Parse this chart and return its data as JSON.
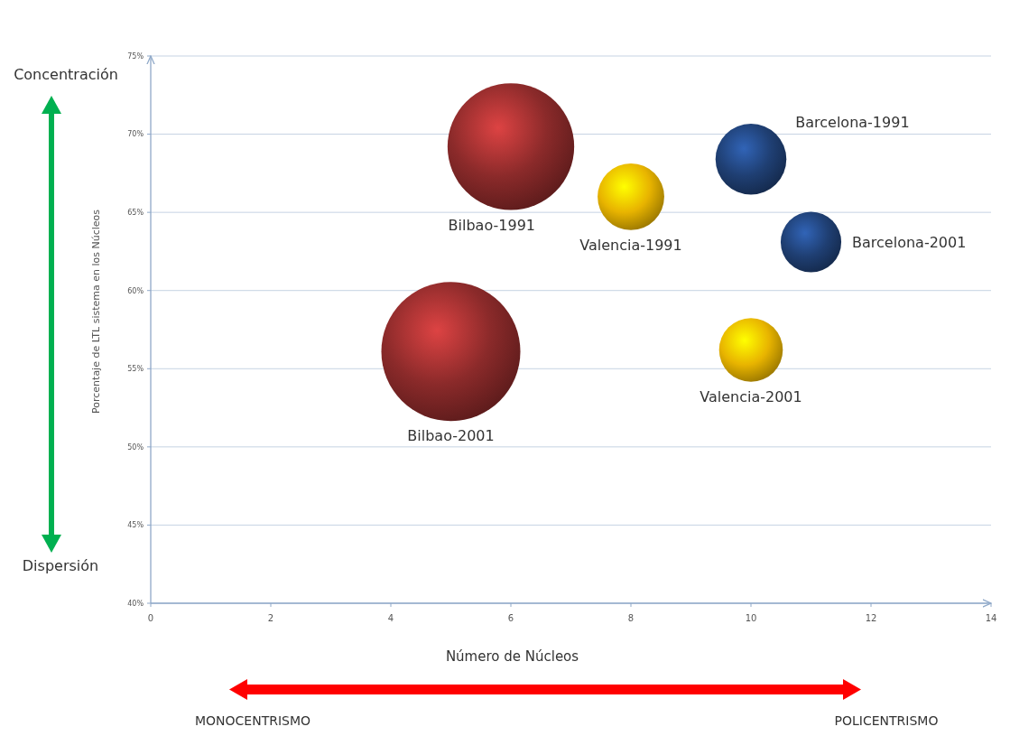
{
  "chart_data": {
    "type": "bubble",
    "xlabel": "Número de Núcleos",
    "ylabel": "Porcentaje de LTL sistema en los Núcleos",
    "xlim": [
      0,
      14
    ],
    "xticks": [
      0,
      2,
      4,
      6,
      8,
      10,
      12,
      14
    ],
    "ylim": [
      40,
      75
    ],
    "yticks": [
      {
        "value": 40,
        "label": "40%"
      },
      {
        "value": 45,
        "label": "45%"
      },
      {
        "value": 50,
        "label": "50%"
      },
      {
        "value": 55,
        "label": "55%"
      },
      {
        "value": 60,
        "label": "60%"
      },
      {
        "value": 65,
        "label": "65%"
      },
      {
        "value": 70,
        "label": "70%"
      },
      {
        "value": 75,
        "label": "75%"
      }
    ],
    "grid": "y",
    "series": [
      {
        "name": "Bilbao-1991",
        "color": "#8b2a2a",
        "x": [
          6
        ],
        "values": [
          69.2
        ],
        "sizes": [
          0.83
        ]
      },
      {
        "name": "Valencia-1991",
        "color": "#e8b400",
        "x": [
          8
        ],
        "values": [
          66
        ],
        "sizes": [
          0.23
        ]
      },
      {
        "name": "Barcelona-1991",
        "color": "#1f3f73",
        "x": [
          10
        ],
        "values": [
          68.4
        ],
        "sizes": [
          0.26
        ]
      },
      {
        "name": "Barcelona-2001",
        "color": "#1f3f73",
        "x": [
          11
        ],
        "values": [
          63.1
        ],
        "sizes": [
          0.19
        ]
      },
      {
        "name": "Bilbao-2001",
        "color": "#8b2a2a",
        "x": [
          5
        ],
        "values": [
          56.1
        ],
        "sizes": [
          1
        ]
      },
      {
        "name": "Valencia-2001",
        "color": "#e8b400",
        "x": [
          10
        ],
        "values": [
          56.2
        ],
        "sizes": [
          0.21
        ]
      }
    ],
    "annotations": [
      "Concentración",
      "Dispersión",
      "MONOCENTRISMO",
      "POLICENTRISMO"
    ]
  }
}
